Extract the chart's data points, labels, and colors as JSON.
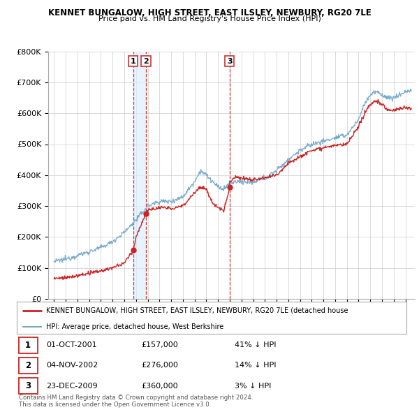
{
  "title1": "KENNET BUNGALOW, HIGH STREET, EAST ILSLEY, NEWBURY, RG20 7LE",
  "title2": "Price paid vs. HM Land Registry's House Price Index (HPI)",
  "legend_red": "KENNET BUNGALOW, HIGH STREET, EAST ILSLEY, NEWBURY, RG20 7LE (detached house",
  "legend_blue": "HPI: Average price, detached house, West Berkshire",
  "transactions": [
    {
      "num": 1,
      "date": "01-OCT-2001",
      "price": 157000,
      "hpi_diff": "41% ↓ HPI",
      "x": 2001.75
    },
    {
      "num": 2,
      "date": "04-NOV-2002",
      "price": 276000,
      "hpi_diff": "14% ↓ HPI",
      "x": 2002.84
    },
    {
      "num": 3,
      "date": "23-DEC-2009",
      "price": 360000,
      "hpi_diff": "3% ↓ HPI",
      "x": 2009.98
    }
  ],
  "footnote1": "Contains HM Land Registry data © Crown copyright and database right 2024.",
  "footnote2": "This data is licensed under the Open Government Licence v3.0.",
  "vline_color": "#cc3333",
  "shade_color": "#ddeeff",
  "red_line_color": "#cc2222",
  "blue_line_color": "#77aacc",
  "dot_color": "#cc2222",
  "ylim": [
    0,
    800000
  ],
  "yticks": [
    0,
    100000,
    200000,
    300000,
    400000,
    500000,
    600000,
    700000,
    800000
  ],
  "xlim": [
    1994.5,
    2025.8
  ],
  "xticks": [
    1995,
    1996,
    1997,
    1998,
    1999,
    2000,
    2001,
    2002,
    2003,
    2004,
    2005,
    2006,
    2007,
    2008,
    2009,
    2010,
    2011,
    2012,
    2013,
    2014,
    2015,
    2016,
    2017,
    2018,
    2019,
    2020,
    2021,
    2022,
    2023,
    2024,
    2025
  ]
}
